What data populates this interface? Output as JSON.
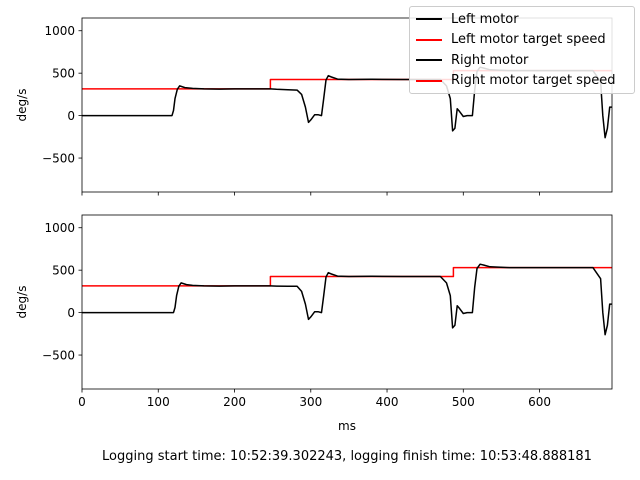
{
  "footer_text": "Logging start time: 10:52:39.302243, logging finish time: 10:53:48.888181",
  "legend": [
    {
      "label": "Left motor",
      "color": "#000000"
    },
    {
      "label": "Left motor target speed",
      "color": "#ff0000"
    },
    {
      "label": "Right motor",
      "color": "#000000"
    },
    {
      "label": "Right motor target speed",
      "color": "#ff0000"
    }
  ],
  "chart_data": [
    {
      "type": "line",
      "ylabel": "deg/s",
      "xlabel": "",
      "xlim": [
        0,
        695
      ],
      "ylim": [
        -900,
        1150
      ],
      "xticks": [
        0,
        100,
        200,
        300,
        400,
        500,
        600
      ],
      "yticks": [
        -500,
        0,
        500,
        1000
      ],
      "show_xtick_labels": false,
      "series": [
        {
          "name": "Left motor target speed",
          "color": "#ff0000",
          "x": [
            0,
            247,
            247,
            487,
            487,
            695
          ],
          "y": [
            315,
            315,
            425,
            425,
            530,
            530
          ]
        },
        {
          "name": "Left motor",
          "color": "#000000",
          "x": [
            0,
            118,
            120,
            122,
            125,
            128,
            135,
            145,
            160,
            180,
            200,
            230,
            247,
            255,
            270,
            282,
            288,
            293,
            297,
            300,
            305,
            310,
            314,
            317,
            320,
            323,
            327,
            335,
            350,
            380,
            420,
            470,
            478,
            483,
            486,
            489,
            492,
            495,
            500,
            505,
            512,
            515,
            518,
            522,
            527,
            535,
            560,
            600,
            640,
            670,
            680,
            683,
            686,
            689,
            692,
            695
          ],
          "y": [
            0,
            0,
            60,
            200,
            310,
            350,
            330,
            320,
            315,
            312,
            315,
            315,
            315,
            310,
            305,
            300,
            250,
            100,
            -80,
            -50,
            10,
            10,
            0,
            200,
            420,
            470,
            455,
            430,
            425,
            428,
            425,
            425,
            350,
            200,
            -180,
            -150,
            80,
            50,
            -10,
            0,
            0,
            300,
            520,
            570,
            560,
            540,
            530,
            530,
            530,
            530,
            400,
            0,
            -260,
            -150,
            100,
            100
          ]
        }
      ]
    },
    {
      "type": "line",
      "ylabel": "deg/s",
      "xlabel": "ms",
      "xlim": [
        0,
        695
      ],
      "ylim": [
        -900,
        1150
      ],
      "xticks": [
        0,
        100,
        200,
        300,
        400,
        500,
        600
      ],
      "yticks": [
        -500,
        0,
        500,
        1000
      ],
      "show_xtick_labels": true,
      "series": [
        {
          "name": "Right motor target speed",
          "color": "#ff0000",
          "x": [
            0,
            247,
            247,
            487,
            487,
            695
          ],
          "y": [
            315,
            315,
            425,
            425,
            530,
            530
          ]
        },
        {
          "name": "Right motor",
          "color": "#000000",
          "x": [
            0,
            120,
            122,
            124,
            127,
            130,
            137,
            145,
            160,
            180,
            200,
            230,
            247,
            255,
            270,
            282,
            288,
            293,
            297,
            300,
            305,
            310,
            314,
            317,
            320,
            323,
            327,
            335,
            350,
            380,
            420,
            470,
            478,
            483,
            486,
            489,
            492,
            495,
            500,
            505,
            512,
            515,
            518,
            522,
            527,
            535,
            560,
            600,
            640,
            670,
            680,
            683,
            686,
            689,
            692,
            695
          ],
          "y": [
            0,
            0,
            60,
            200,
            310,
            350,
            330,
            320,
            315,
            312,
            315,
            315,
            315,
            312,
            310,
            310,
            250,
            100,
            -80,
            -50,
            10,
            10,
            0,
            200,
            420,
            470,
            455,
            430,
            425,
            428,
            425,
            425,
            350,
            200,
            -180,
            -150,
            80,
            50,
            -10,
            0,
            0,
            300,
            520,
            570,
            560,
            540,
            530,
            530,
            530,
            530,
            400,
            0,
            -260,
            -150,
            100,
            100
          ]
        }
      ]
    }
  ]
}
